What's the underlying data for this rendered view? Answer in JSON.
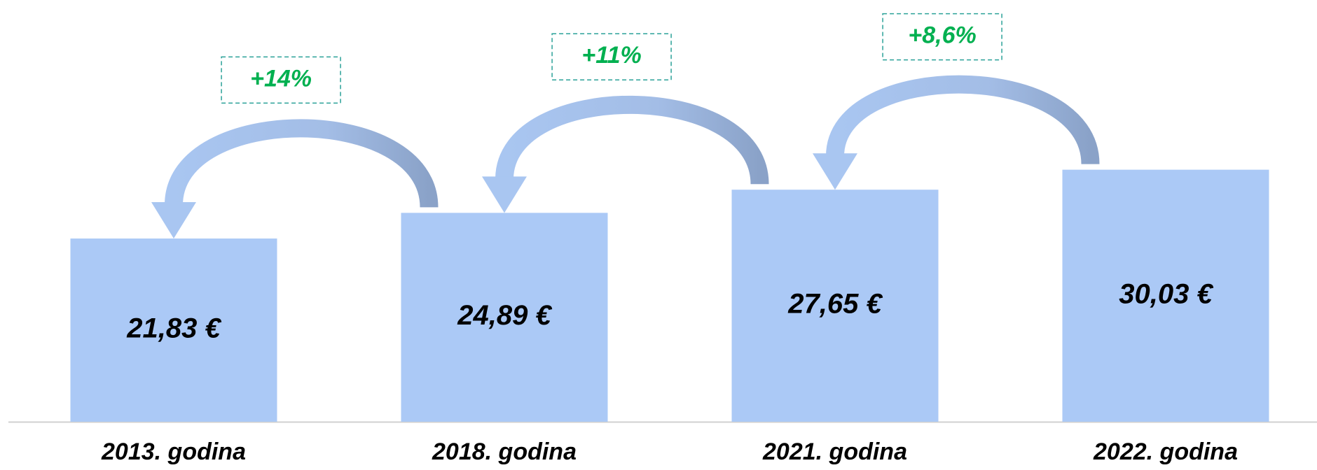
{
  "chart_data": {
    "type": "bar",
    "categories": [
      "2013. godina",
      "2018. godina",
      "2021. godina",
      "2022. godina"
    ],
    "values": [
      21.83,
      24.89,
      27.65,
      30.03
    ],
    "value_labels": [
      "21,83 €",
      "24,89 €",
      "27,65 €",
      "30,03 €"
    ],
    "color": "#abc9f6",
    "ylim": [
      0,
      50
    ],
    "annotations": [
      "+14%",
      "+11%",
      "+8,6%"
    ],
    "annotation_color": "#00b050"
  }
}
